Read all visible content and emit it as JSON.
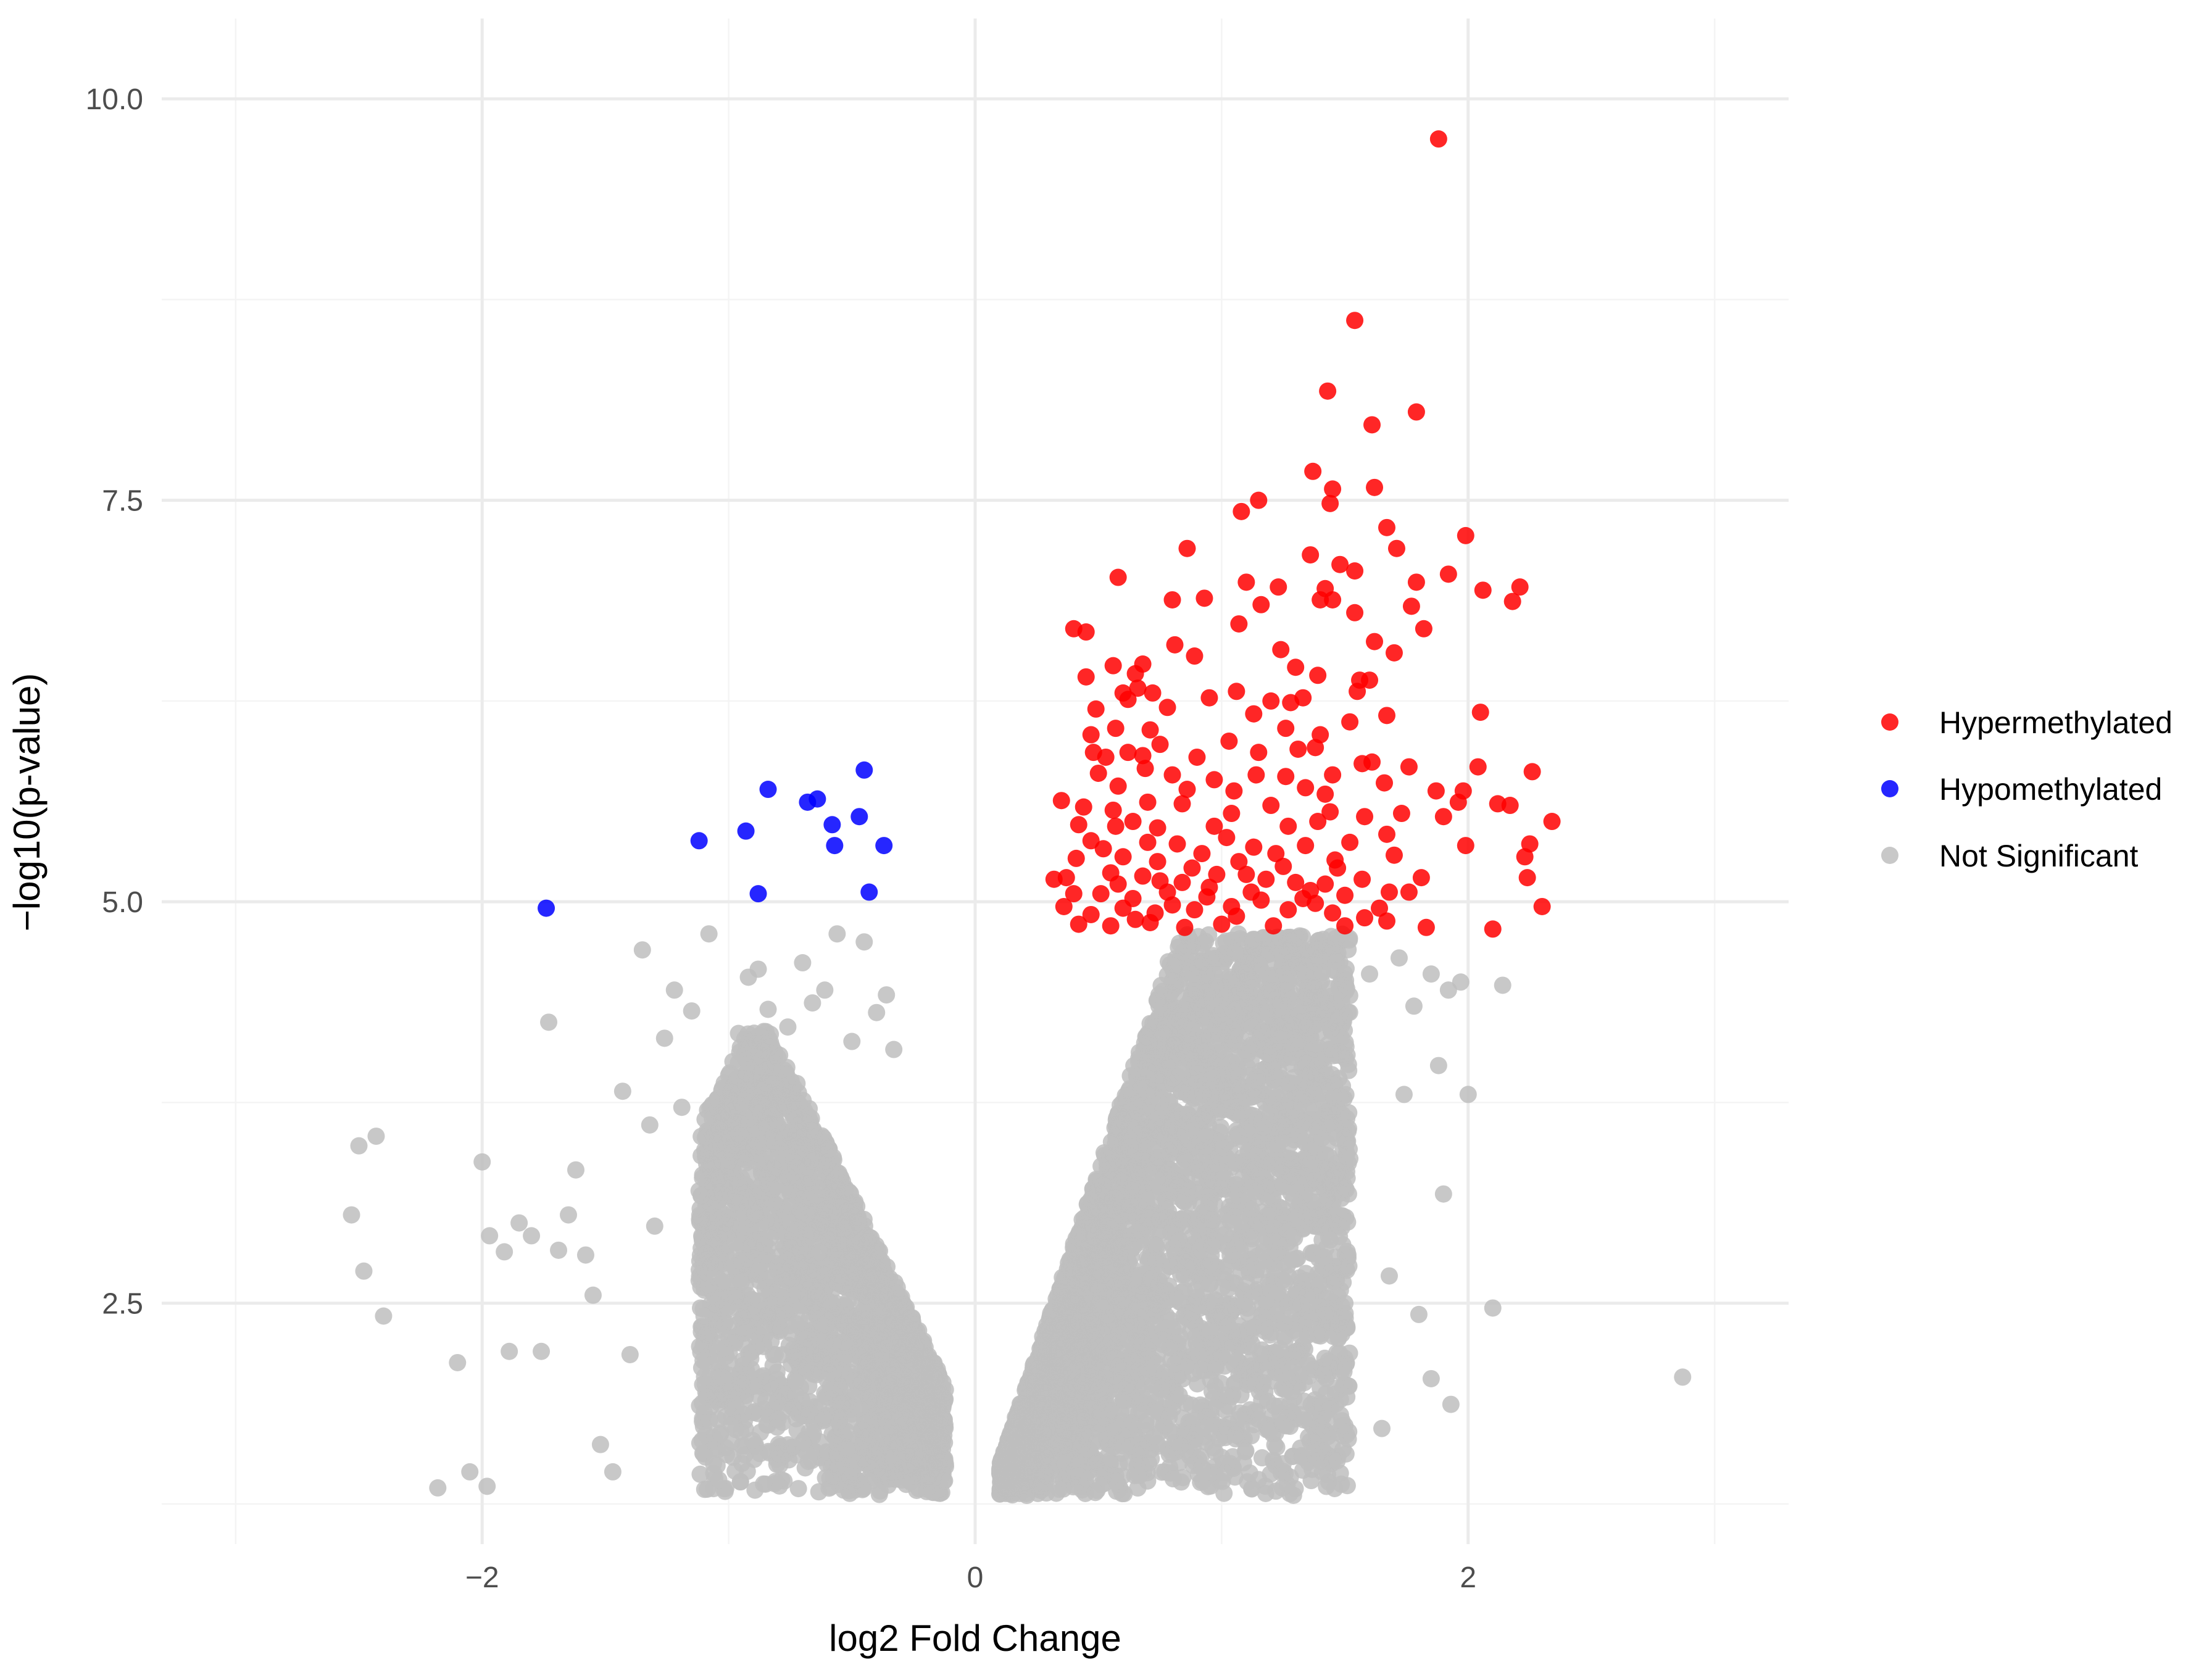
{
  "chart_data": {
    "type": "scatter",
    "title": "",
    "xlabel": "log2 Fold Change",
    "ylabel": "−log10(p-value)",
    "xlim": [
      -3.3,
      3.3
    ],
    "ylim": [
      1.0,
      10.5
    ],
    "x_ticks": [
      -2,
      0,
      2
    ],
    "x_tick_labels": [
      "−2",
      "0",
      "2"
    ],
    "y_ticks": [
      2.5,
      5.0,
      7.5,
      10.0
    ],
    "y_tick_labels": [
      "2.5",
      "5.0",
      "7.5",
      "10.0"
    ],
    "grid": true,
    "legend_position": "right",
    "legend": [
      {
        "label": "Hypermethylated",
        "color": "#ff0000"
      },
      {
        "label": "Hypomethylated",
        "color": "#0000ff"
      },
      {
        "label": "Not Significant",
        "color": "#bebebe"
      }
    ],
    "series": [
      {
        "name": "Hypermethylated",
        "color": "#ff0000",
        "points": [
          [
            1.88,
            9.75
          ],
          [
            1.54,
            8.62
          ],
          [
            1.43,
            8.18
          ],
          [
            1.79,
            8.05
          ],
          [
            1.61,
            7.97
          ],
          [
            1.37,
            7.68
          ],
          [
            1.45,
            7.57
          ],
          [
            1.62,
            7.58
          ],
          [
            1.44,
            7.48
          ],
          [
            1.15,
            7.5
          ],
          [
            1.08,
            7.43
          ],
          [
            1.67,
            7.33
          ],
          [
            0.86,
            7.2
          ],
          [
            1.36,
            7.16
          ],
          [
            1.71,
            7.2
          ],
          [
            1.99,
            7.28
          ],
          [
            1.48,
            7.1
          ],
          [
            1.54,
            7.06
          ],
          [
            0.58,
            7.02
          ],
          [
            1.1,
            6.99
          ],
          [
            1.23,
            6.96
          ],
          [
            1.79,
            6.99
          ],
          [
            1.92,
            7.04
          ],
          [
            2.06,
            6.94
          ],
          [
            2.21,
            6.96
          ],
          [
            0.8,
            6.88
          ],
          [
            0.93,
            6.89
          ],
          [
            1.42,
            6.95
          ],
          [
            1.45,
            6.88
          ],
          [
            1.4,
            6.88
          ],
          [
            1.16,
            6.85
          ],
          [
            1.77,
            6.84
          ],
          [
            2.18,
            6.87
          ],
          [
            1.54,
            6.8
          ],
          [
            1.07,
            6.73
          ],
          [
            0.4,
            6.7
          ],
          [
            0.45,
            6.68
          ],
          [
            1.82,
            6.7
          ],
          [
            1.62,
            6.62
          ],
          [
            0.81,
            6.6
          ],
          [
            1.7,
            6.55
          ],
          [
            1.24,
            6.57
          ],
          [
            0.56,
            6.47
          ],
          [
            0.68,
            6.48
          ],
          [
            0.45,
            6.4
          ],
          [
            0.65,
            6.42
          ],
          [
            0.89,
            6.53
          ],
          [
            1.3,
            6.46
          ],
          [
            1.39,
            6.41
          ],
          [
            1.56,
            6.38
          ],
          [
            1.6,
            6.38
          ],
          [
            0.6,
            6.3
          ],
          [
            0.66,
            6.33
          ],
          [
            0.72,
            6.3
          ],
          [
            0.95,
            6.27
          ],
          [
            1.06,
            6.31
          ],
          [
            1.2,
            6.25
          ],
          [
            1.33,
            6.27
          ],
          [
            1.55,
            6.31
          ],
          [
            0.49,
            6.2
          ],
          [
            0.62,
            6.26
          ],
          [
            0.78,
            6.21
          ],
          [
            1.13,
            6.17
          ],
          [
            1.28,
            6.24
          ],
          [
            1.52,
            6.12
          ],
          [
            1.67,
            6.16
          ],
          [
            2.05,
            6.18
          ],
          [
            0.57,
            6.08
          ],
          [
            0.71,
            6.07
          ],
          [
            0.47,
            6.04
          ],
          [
            1.26,
            6.08
          ],
          [
            1.4,
            6.04
          ],
          [
            0.75,
            5.98
          ],
          [
            1.03,
            6.0
          ],
          [
            1.31,
            5.95
          ],
          [
            0.48,
            5.93
          ],
          [
            0.53,
            5.9
          ],
          [
            0.62,
            5.93
          ],
          [
            0.9,
            5.9
          ],
          [
            1.15,
            5.93
          ],
          [
            1.38,
            5.96
          ],
          [
            1.61,
            5.87
          ],
          [
            1.76,
            5.84
          ],
          [
            2.04,
            5.84
          ],
          [
            2.26,
            5.81
          ],
          [
            0.5,
            5.8
          ],
          [
            0.69,
            5.83
          ],
          [
            0.8,
            5.79
          ],
          [
            0.97,
            5.76
          ],
          [
            1.26,
            5.78
          ],
          [
            1.45,
            5.79
          ],
          [
            1.66,
            5.74
          ],
          [
            0.58,
            5.72
          ],
          [
            0.86,
            5.7
          ],
          [
            1.05,
            5.69
          ],
          [
            1.34,
            5.71
          ],
          [
            1.87,
            5.69
          ],
          [
            1.98,
            5.69
          ],
          [
            2.17,
            5.6
          ],
          [
            0.35,
            5.63
          ],
          [
            0.44,
            5.59
          ],
          [
            0.56,
            5.57
          ],
          [
            0.7,
            5.62
          ],
          [
            0.84,
            5.61
          ],
          [
            1.04,
            5.55
          ],
          [
            1.2,
            5.6
          ],
          [
            1.44,
            5.56
          ],
          [
            1.58,
            5.53
          ],
          [
            1.73,
            5.55
          ],
          [
            2.12,
            5.61
          ],
          [
            0.42,
            5.48
          ],
          [
            0.57,
            5.47
          ],
          [
            0.64,
            5.5
          ],
          [
            0.74,
            5.46
          ],
          [
            0.97,
            5.47
          ],
          [
            1.27,
            5.47
          ],
          [
            1.39,
            5.5
          ],
          [
            1.67,
            5.42
          ],
          [
            1.9,
            5.53
          ],
          [
            2.34,
            5.5
          ],
          [
            0.47,
            5.38
          ],
          [
            0.52,
            5.33
          ],
          [
            0.7,
            5.37
          ],
          [
            0.82,
            5.36
          ],
          [
            1.02,
            5.4
          ],
          [
            1.13,
            5.34
          ],
          [
            1.34,
            5.35
          ],
          [
            1.52,
            5.37
          ],
          [
            1.99,
            5.35
          ],
          [
            2.25,
            5.36
          ],
          [
            0.41,
            5.27
          ],
          [
            0.6,
            5.28
          ],
          [
            0.74,
            5.25
          ],
          [
            0.92,
            5.3
          ],
          [
            1.07,
            5.25
          ],
          [
            1.25,
            5.22
          ],
          [
            1.46,
            5.26
          ],
          [
            1.7,
            5.29
          ],
          [
            2.23,
            5.28
          ],
          [
            0.32,
            5.14
          ],
          [
            0.37,
            5.15
          ],
          [
            0.55,
            5.18
          ],
          [
            0.68,
            5.16
          ],
          [
            0.84,
            5.12
          ],
          [
            0.98,
            5.17
          ],
          [
            1.18,
            5.14
          ],
          [
            1.42,
            5.11
          ],
          [
            1.57,
            5.14
          ],
          [
            1.81,
            5.15
          ],
          [
            2.24,
            5.15
          ],
          [
            0.4,
            5.05
          ],
          [
            0.51,
            5.05
          ],
          [
            0.64,
            5.02
          ],
          [
            0.78,
            5.06
          ],
          [
            0.94,
            5.03
          ],
          [
            1.12,
            5.06
          ],
          [
            1.33,
            5.02
          ],
          [
            1.5,
            5.04
          ],
          [
            1.68,
            5.06
          ],
          [
            0.36,
            4.97
          ],
          [
            0.47,
            4.92
          ],
          [
            0.6,
            4.96
          ],
          [
            0.73,
            4.93
          ],
          [
            0.89,
            4.95
          ],
          [
            1.06,
            4.91
          ],
          [
            1.27,
            4.95
          ],
          [
            1.45,
            4.93
          ],
          [
            1.64,
            4.96
          ],
          [
            2.3,
            4.97
          ],
          [
            0.42,
            4.86
          ],
          [
            0.55,
            4.85
          ],
          [
            0.71,
            4.87
          ],
          [
            0.85,
            4.84
          ],
          [
            1.0,
            4.86
          ],
          [
            1.21,
            4.85
          ],
          [
            1.5,
            4.85
          ],
          [
            1.67,
            4.88
          ],
          [
            1.83,
            4.84
          ],
          [
            2.1,
            4.83
          ],
          [
            0.65,
            4.89
          ],
          [
            0.8,
            4.98
          ],
          [
            0.95,
            5.09
          ],
          [
            1.1,
            5.17
          ],
          [
            1.16,
            5.01
          ],
          [
            1.3,
            5.12
          ],
          [
            1.38,
            4.99
          ],
          [
            1.47,
            5.21
          ],
          [
            1.58,
            4.9
          ],
          [
            0.58,
            5.11
          ],
          [
            0.88,
            5.21
          ],
          [
            1.22,
            5.3
          ],
          [
            1.76,
            5.06
          ],
          [
            1.36,
            5.07
          ],
          [
            1.04,
            4.97
          ],
          [
            0.75,
            5.13
          ],
          [
            1.96,
            5.62
          ],
          [
            1.57,
            5.86
          ],
          [
            0.68,
            5.91
          ],
          [
            1.42,
            5.67
          ],
          [
            1.14,
            5.79
          ]
        ]
      },
      {
        "name": "Hypomethylated",
        "color": "#0000ff",
        "points": [
          [
            -1.74,
            4.96
          ],
          [
            -1.12,
            5.38
          ],
          [
            -0.93,
            5.44
          ],
          [
            -0.84,
            5.7
          ],
          [
            -0.68,
            5.62
          ],
          [
            -0.64,
            5.64
          ],
          [
            -0.58,
            5.48
          ],
          [
            -0.57,
            5.35
          ],
          [
            -0.47,
            5.53
          ],
          [
            -0.45,
            5.82
          ],
          [
            -0.43,
            5.06
          ],
          [
            -0.37,
            5.35
          ],
          [
            -0.88,
            5.05
          ]
        ]
      },
      {
        "name": "Not Significant",
        "color": "#bebebe",
        "points": [
          [
            -2.18,
            1.35
          ],
          [
            -2.05,
            1.45
          ],
          [
            -1.98,
            1.36
          ],
          [
            -2.53,
            3.05
          ],
          [
            -2.5,
            3.48
          ],
          [
            -2.43,
            3.54
          ],
          [
            -2.48,
            2.7
          ],
          [
            -2.4,
            2.42
          ],
          [
            -2.1,
            2.13
          ],
          [
            -2.0,
            3.38
          ],
          [
            -1.97,
            2.92
          ],
          [
            -1.91,
            2.82
          ],
          [
            -1.89,
            2.2
          ],
          [
            -1.85,
            3.0
          ],
          [
            -1.8,
            2.92
          ],
          [
            -1.76,
            2.2
          ],
          [
            -1.73,
            4.25
          ],
          [
            -1.69,
            2.83
          ],
          [
            -1.65,
            3.05
          ],
          [
            -1.62,
            3.33
          ],
          [
            -1.58,
            2.8
          ],
          [
            -1.55,
            2.55
          ],
          [
            -1.52,
            1.62
          ],
          [
            -1.47,
            1.45
          ],
          [
            -1.43,
            3.82
          ],
          [
            -1.4,
            2.18
          ],
          [
            -1.35,
            4.7
          ],
          [
            -1.32,
            3.61
          ],
          [
            -1.3,
            2.98
          ],
          [
            -1.26,
            4.15
          ],
          [
            -1.22,
            4.45
          ],
          [
            -1.19,
            3.72
          ],
          [
            -1.15,
            4.32
          ],
          [
            -1.12,
            3.2
          ],
          [
            -1.08,
            4.8
          ],
          [
            -1.04,
            1.4
          ],
          [
            -1.0,
            3.92
          ],
          [
            -0.96,
            4.18
          ],
          [
            -0.92,
            4.53
          ],
          [
            -0.88,
            4.58
          ],
          [
            -0.84,
            4.33
          ],
          [
            -0.8,
            4.03
          ],
          [
            -0.76,
            4.22
          ],
          [
            -0.7,
            4.62
          ],
          [
            -0.66,
            4.37
          ],
          [
            -0.61,
            4.45
          ],
          [
            -0.56,
            4.8
          ],
          [
            -0.5,
            4.13
          ],
          [
            -0.45,
            4.75
          ],
          [
            -0.4,
            4.31
          ],
          [
            -0.36,
            4.42
          ],
          [
            -0.33,
            4.08
          ],
          [
            1.9,
            3.18
          ],
          [
            2.0,
            3.8
          ],
          [
            1.97,
            4.5
          ],
          [
            1.92,
            4.45
          ],
          [
            1.85,
            4.55
          ],
          [
            2.14,
            4.48
          ],
          [
            2.1,
            2.47
          ],
          [
            2.87,
            2.04
          ],
          [
            1.85,
            2.03
          ],
          [
            1.93,
            1.87
          ],
          [
            1.65,
            1.72
          ],
          [
            1.45,
            1.53
          ],
          [
            1.4,
            1.97
          ],
          [
            1.68,
            2.67
          ],
          [
            1.8,
            2.43
          ],
          [
            1.74,
            3.8
          ],
          [
            1.88,
            3.98
          ],
          [
            1.78,
            4.35
          ],
          [
            1.72,
            4.65
          ],
          [
            1.6,
            4.55
          ],
          [
            1.52,
            3.4
          ],
          [
            1.5,
            2.5
          ],
          [
            1.32,
            2.3
          ],
          [
            1.22,
            1.33
          ]
        ],
        "cloud_regions": [
          {
            "x_range": [
              -1.12,
              -0.12
            ],
            "y_range": [
              1.3,
              4.1
            ],
            "density": "dense"
          },
          {
            "x_range": [
              0.1,
              1.52
            ],
            "y_range": [
              1.3,
              4.8
            ],
            "density": "dense"
          }
        ]
      }
    ]
  }
}
